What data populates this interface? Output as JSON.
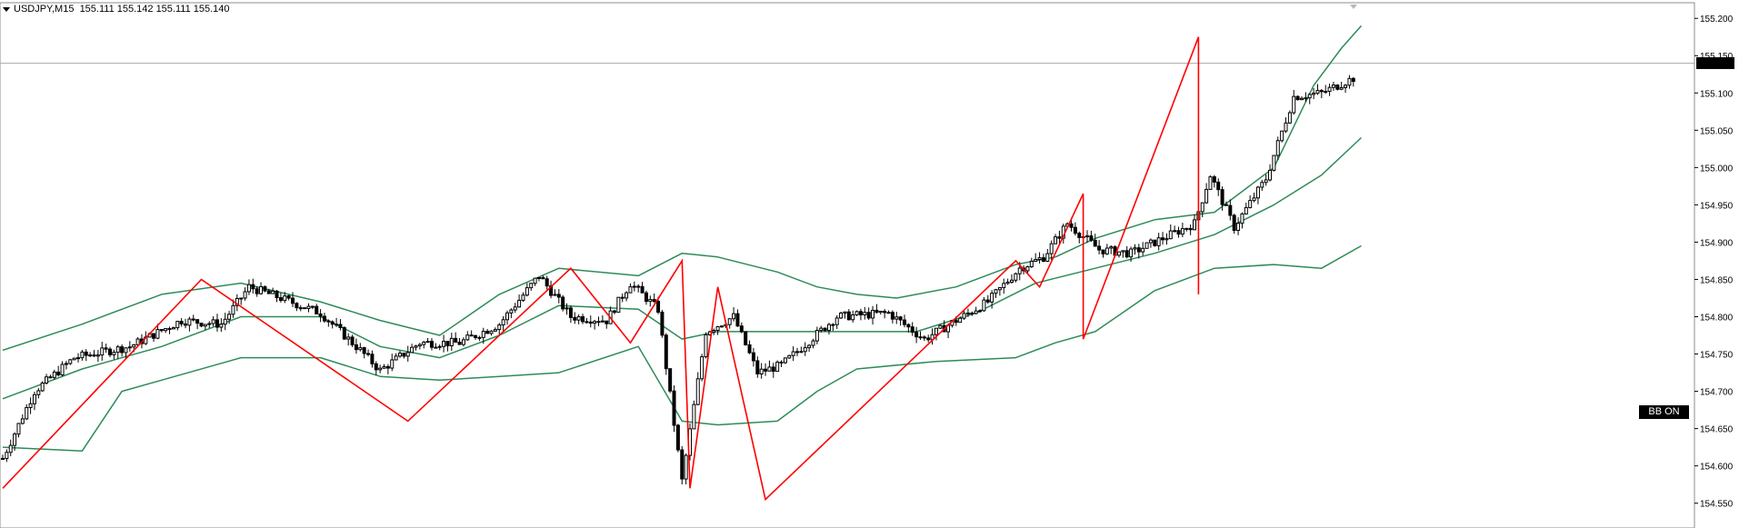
{
  "header": {
    "symbol": "USDJPY,M15",
    "ohlc": "155.111 155.142 155.111 155.140"
  },
  "indicator_tag": "BB ON",
  "colors": {
    "candle": "#000000",
    "bollinger": "#2e8b57",
    "zigzag": "#ff0000",
    "grid": "#c8c8c8",
    "bid_line": "#b0b0b0"
  },
  "chart_data": {
    "type": "candlestick",
    "ylim": [
      154.535,
      155.21
    ],
    "yticks": [
      "155.200",
      "155.150",
      "155.100",
      "155.050",
      "155.000",
      "154.950",
      "154.900",
      "154.850",
      "154.800",
      "154.750",
      "154.700",
      "154.650",
      "154.600",
      "154.550"
    ],
    "current_price": "155.140",
    "close_anchors": [
      [
        0,
        154.61
      ],
      [
        8,
        154.7
      ],
      [
        18,
        154.745
      ],
      [
        32,
        154.76
      ],
      [
        45,
        154.795
      ],
      [
        55,
        154.79
      ],
      [
        62,
        154.84
      ],
      [
        70,
        154.825
      ],
      [
        80,
        154.805
      ],
      [
        90,
        154.755
      ],
      [
        95,
        154.728
      ],
      [
        105,
        154.765
      ],
      [
        115,
        154.765
      ],
      [
        125,
        154.79
      ],
      [
        135,
        154.855
      ],
      [
        143,
        154.8
      ],
      [
        152,
        154.795
      ],
      [
        158,
        154.845
      ],
      [
        165,
        154.81
      ],
      [
        171,
        154.58
      ],
      [
        177,
        154.78
      ],
      [
        184,
        154.8
      ],
      [
        190,
        154.725
      ],
      [
        196,
        154.735
      ],
      [
        210,
        154.8
      ],
      [
        223,
        154.805
      ],
      [
        232,
        154.77
      ],
      [
        240,
        154.795
      ],
      [
        248,
        154.82
      ],
      [
        256,
        154.865
      ],
      [
        262,
        154.88
      ],
      [
        268,
        154.925
      ],
      [
        276,
        154.89
      ],
      [
        284,
        154.885
      ],
      [
        292,
        154.905
      ],
      [
        300,
        154.925
      ],
      [
        304,
        154.99
      ],
      [
        310,
        154.92
      ],
      [
        318,
        154.985
      ],
      [
        325,
        155.095
      ],
      [
        332,
        155.1
      ],
      [
        340,
        155.12
      ]
    ],
    "bollinger": {
      "upper": [
        [
          0,
          154.755
        ],
        [
          20,
          154.79
        ],
        [
          40,
          154.83
        ],
        [
          60,
          154.845
        ],
        [
          80,
          154.82
        ],
        [
          95,
          154.795
        ],
        [
          110,
          154.775
        ],
        [
          125,
          154.83
        ],
        [
          140,
          154.865
        ],
        [
          160,
          154.855
        ],
        [
          171,
          154.885
        ],
        [
          180,
          154.88
        ],
        [
          195,
          154.86
        ],
        [
          205,
          154.84
        ],
        [
          215,
          154.83
        ],
        [
          225,
          154.825
        ],
        [
          240,
          154.84
        ],
        [
          255,
          154.87
        ],
        [
          265,
          154.88
        ],
        [
          275,
          154.905
        ],
        [
          290,
          154.93
        ],
        [
          305,
          154.94
        ],
        [
          320,
          155.0
        ],
        [
          330,
          155.11
        ],
        [
          337,
          155.16
        ],
        [
          342,
          155.19
        ]
      ],
      "middle": [
        [
          0,
          154.69
        ],
        [
          20,
          154.73
        ],
        [
          40,
          154.76
        ],
        [
          60,
          154.8
        ],
        [
          80,
          154.8
        ],
        [
          95,
          154.76
        ],
        [
          110,
          154.745
        ],
        [
          125,
          154.775
        ],
        [
          140,
          154.815
        ],
        [
          160,
          154.81
        ],
        [
          171,
          154.77
        ],
        [
          180,
          154.78
        ],
        [
          200,
          154.78
        ],
        [
          215,
          154.78
        ],
        [
          230,
          154.78
        ],
        [
          245,
          154.805
        ],
        [
          260,
          154.845
        ],
        [
          275,
          154.865
        ],
        [
          290,
          154.885
        ],
        [
          305,
          154.91
        ],
        [
          320,
          154.95
        ],
        [
          332,
          154.99
        ],
        [
          342,
          155.04
        ]
      ],
      "lower": [
        [
          0,
          154.625
        ],
        [
          20,
          154.62
        ],
        [
          30,
          154.7
        ],
        [
          40,
          154.715
        ],
        [
          60,
          154.745
        ],
        [
          80,
          154.745
        ],
        [
          95,
          154.72
        ],
        [
          110,
          154.715
        ],
        [
          125,
          154.72
        ],
        [
          140,
          154.725
        ],
        [
          160,
          154.76
        ],
        [
          171,
          154.66
        ],
        [
          180,
          154.655
        ],
        [
          195,
          154.66
        ],
        [
          205,
          154.7
        ],
        [
          215,
          154.73
        ],
        [
          235,
          154.74
        ],
        [
          255,
          154.745
        ],
        [
          265,
          154.765
        ],
        [
          275,
          154.78
        ],
        [
          290,
          154.835
        ],
        [
          305,
          154.865
        ],
        [
          320,
          154.87
        ],
        [
          332,
          154.865
        ],
        [
          342,
          154.895
        ]
      ]
    },
    "zigzag": [
      [
        0,
        154.57
      ],
      [
        50,
        154.85
      ],
      [
        102,
        154.66
      ],
      [
        143,
        154.865
      ],
      [
        158,
        154.765
      ],
      [
        171,
        154.875
      ],
      [
        173,
        154.57
      ],
      [
        180,
        154.84
      ],
      [
        192,
        154.555
      ],
      [
        255,
        154.875
      ],
      [
        261,
        154.84
      ],
      [
        272,
        154.965
      ],
      [
        272,
        154.77
      ],
      [
        301,
        155.175
      ],
      [
        301,
        154.83
      ]
    ]
  }
}
